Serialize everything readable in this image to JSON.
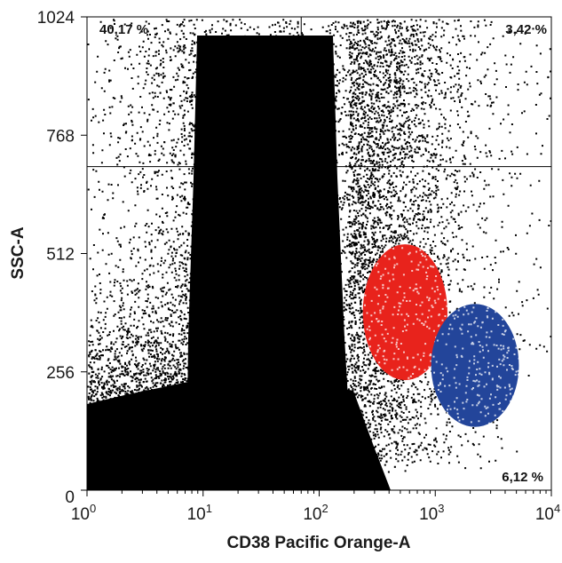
{
  "chart_data": {
    "type": "scatter",
    "title": "",
    "xlabel": "CD38 Pacific Orange-A",
    "ylabel": "SSC-A",
    "xscale": "log",
    "xlim": [
      1,
      10000
    ],
    "ylim": [
      0,
      1024
    ],
    "x_ticks": [
      {
        "base": "10",
        "exp": "0"
      },
      {
        "base": "10",
        "exp": "1"
      },
      {
        "base": "10",
        "exp": "2"
      },
      {
        "base": "10",
        "exp": "3"
      },
      {
        "base": "10",
        "exp": "4"
      }
    ],
    "y_ticks": [
      "0",
      "256",
      "512",
      "768",
      "1024"
    ],
    "quadrant_gates": {
      "x_threshold": 70,
      "y_threshold": 700
    },
    "quadrant_labels": {
      "upper_left": "40,17 %",
      "upper_right": "3,42 %",
      "lower_right": "6,12 %"
    },
    "populations": [
      {
        "color": "#e8231c",
        "center_x": 550,
        "center_y": 385,
        "spread_logx": 0.27,
        "spread_y": 105
      },
      {
        "color": "#23459a",
        "center_x": 2200,
        "center_y": 270,
        "spread_logx": 0.28,
        "spread_y": 95
      }
    ],
    "colors": {
      "events": "#000000",
      "red_population": "#e8231c",
      "blue_population": "#23459a"
    },
    "grid": false,
    "legend": "none"
  }
}
